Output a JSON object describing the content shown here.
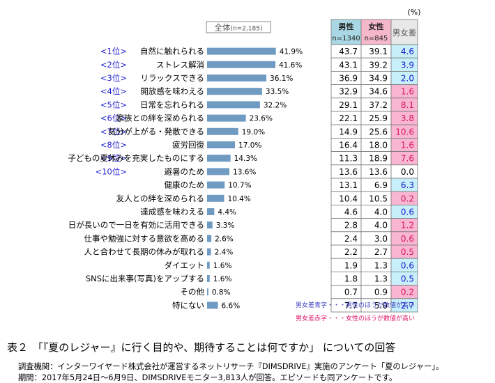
{
  "chart_data": {
    "type": "bar",
    "overall_label": "全体",
    "overall_n": "(n=2,185)",
    "unit": "(%)",
    "columns": {
      "male": {
        "label": "男性",
        "n": "n=1340",
        "color": "#a9d8e4"
      },
      "female": {
        "label": "女性",
        "n": "n=845",
        "color": "#f5b8ca"
      },
      "diff": {
        "label": "男女差",
        "color": "#e8e8e8"
      }
    },
    "bar_color": "#6f9bc3",
    "xlim": [
      0,
      45
    ],
    "items": [
      {
        "rank": "<1位>",
        "label": "自然に触れられる",
        "value": 41.9,
        "value_label": "41.9%",
        "male": "43.7",
        "female": "39.1",
        "diff": "4.6",
        "diff_side": "male"
      },
      {
        "rank": "<2位>",
        "label": "ストレス解消",
        "value": 41.6,
        "value_label": "41.6%",
        "male": "43.1",
        "female": "39.2",
        "diff": "3.9",
        "diff_side": "male"
      },
      {
        "rank": "<3位>",
        "label": "リラックスできる",
        "value": 36.1,
        "value_label": "36.1%",
        "male": "36.9",
        "female": "34.9",
        "diff": "2.0",
        "diff_side": "male"
      },
      {
        "rank": "<4位>",
        "label": "開放感を味わえる",
        "value": 33.5,
        "value_label": "33.5%",
        "male": "32.9",
        "female": "34.6",
        "diff": "1.6",
        "diff_side": "female"
      },
      {
        "rank": "<5位>",
        "label": "日常を忘れられる",
        "value": 32.2,
        "value_label": "32.2%",
        "male": "29.1",
        "female": "37.2",
        "diff": "8.1",
        "diff_side": "female"
      },
      {
        "rank": "<6位>",
        "label": "家族との絆を深められる",
        "value": 23.6,
        "value_label": "23.6%",
        "male": "22.1",
        "female": "25.9",
        "diff": "3.8",
        "diff_side": "female"
      },
      {
        "rank": "<7位>",
        "label": "気分が上がる・発散できる",
        "value": 19.0,
        "value_label": "19.0%",
        "male": "14.9",
        "female": "25.6",
        "diff": "10.6",
        "diff_side": "female"
      },
      {
        "rank": "<8位>",
        "label": "疲労回復",
        "value": 17.0,
        "value_label": "17.0%",
        "male": "16.4",
        "female": "18.0",
        "diff": "1.6",
        "diff_side": "female"
      },
      {
        "rank": "<9位>",
        "label": "子どもの夏休みを充実したものにする",
        "value": 14.3,
        "value_label": "14.3%",
        "male": "11.3",
        "female": "18.9",
        "diff": "7.6",
        "diff_side": "female"
      },
      {
        "rank": "<10位>",
        "label": "避暑のため",
        "value": 13.6,
        "value_label": "13.6%",
        "male": "13.6",
        "female": "13.6",
        "diff": "0.0",
        "diff_side": "none"
      },
      {
        "rank": "",
        "label": "健康のため",
        "value": 10.7,
        "value_label": "10.7%",
        "male": "13.1",
        "female": "6.9",
        "diff": "6.3",
        "diff_side": "male"
      },
      {
        "rank": "",
        "label": "友人との絆を深められる",
        "value": 10.4,
        "value_label": "10.4%",
        "male": "10.4",
        "female": "10.5",
        "diff": "0.2",
        "diff_side": "female"
      },
      {
        "rank": "",
        "label": "達成感を味わえる",
        "value": 4.4,
        "value_label": "4.4%",
        "male": "4.6",
        "female": "4.0",
        "diff": "0.6",
        "diff_side": "male"
      },
      {
        "rank": "",
        "label": "日が長いので一日を有効に活用できる",
        "value": 3.3,
        "value_label": "3.3%",
        "male": "2.8",
        "female": "4.0",
        "diff": "1.2",
        "diff_side": "female"
      },
      {
        "rank": "",
        "label": "仕事や勉強に対する意欲を高める",
        "value": 2.6,
        "value_label": "2.6%",
        "male": "2.4",
        "female": "3.0",
        "diff": "0.6",
        "diff_side": "female"
      },
      {
        "rank": "",
        "label": "人と合わせて長期の休みが取れる",
        "value": 2.4,
        "value_label": "2.4%",
        "male": "2.2",
        "female": "2.7",
        "diff": "0.5",
        "diff_side": "female"
      },
      {
        "rank": "",
        "label": "ダイエット",
        "value": 1.6,
        "value_label": "1.6%",
        "male": "1.9",
        "female": "1.3",
        "diff": "0.6",
        "diff_side": "male"
      },
      {
        "rank": "",
        "label": "SNSに出来事(写真)をアップする",
        "value": 1.6,
        "value_label": "1.6%",
        "male": "1.8",
        "female": "1.3",
        "diff": "0.5",
        "diff_side": "male"
      },
      {
        "rank": "",
        "label": "その他",
        "value": 0.8,
        "value_label": "0.8%",
        "male": "0.7",
        "female": "0.9",
        "diff": "0.2",
        "diff_side": "female"
      },
      {
        "rank": "",
        "label": "特にない",
        "value": 6.6,
        "value_label": "6.6%",
        "male": "7.7",
        "female": "5.0",
        "diff": "2.7",
        "diff_side": "male"
      }
    ],
    "legend": [
      {
        "text": "男女差青字・・・男性のほうが数値が高い",
        "color": "#3a3fbf"
      },
      {
        "text": "男女差赤字・・・女性のほうが数値が高い",
        "color": "#e0186c"
      }
    ],
    "highlight": {
      "male_fill": "#c8f0fb",
      "female_fill": "#f8b6d3",
      "male_text": "#1a1acc",
      "female_text": "#d8155f"
    }
  },
  "caption": {
    "number": "表２",
    "title": "「『夏のレジャー』に行く目的や、期待することは何ですか」 についての回答"
  },
  "notes": [
    "調査機関：インターワイヤード株式会社が運営するネットリサーチ『DIMSDRIVE』実施のアンケート「夏のレジャー」。",
    "期間：2017年5月24日～6月9日、DIMSDRIVEモニター3,813人が回答。エピソードも同アンケートです。"
  ]
}
